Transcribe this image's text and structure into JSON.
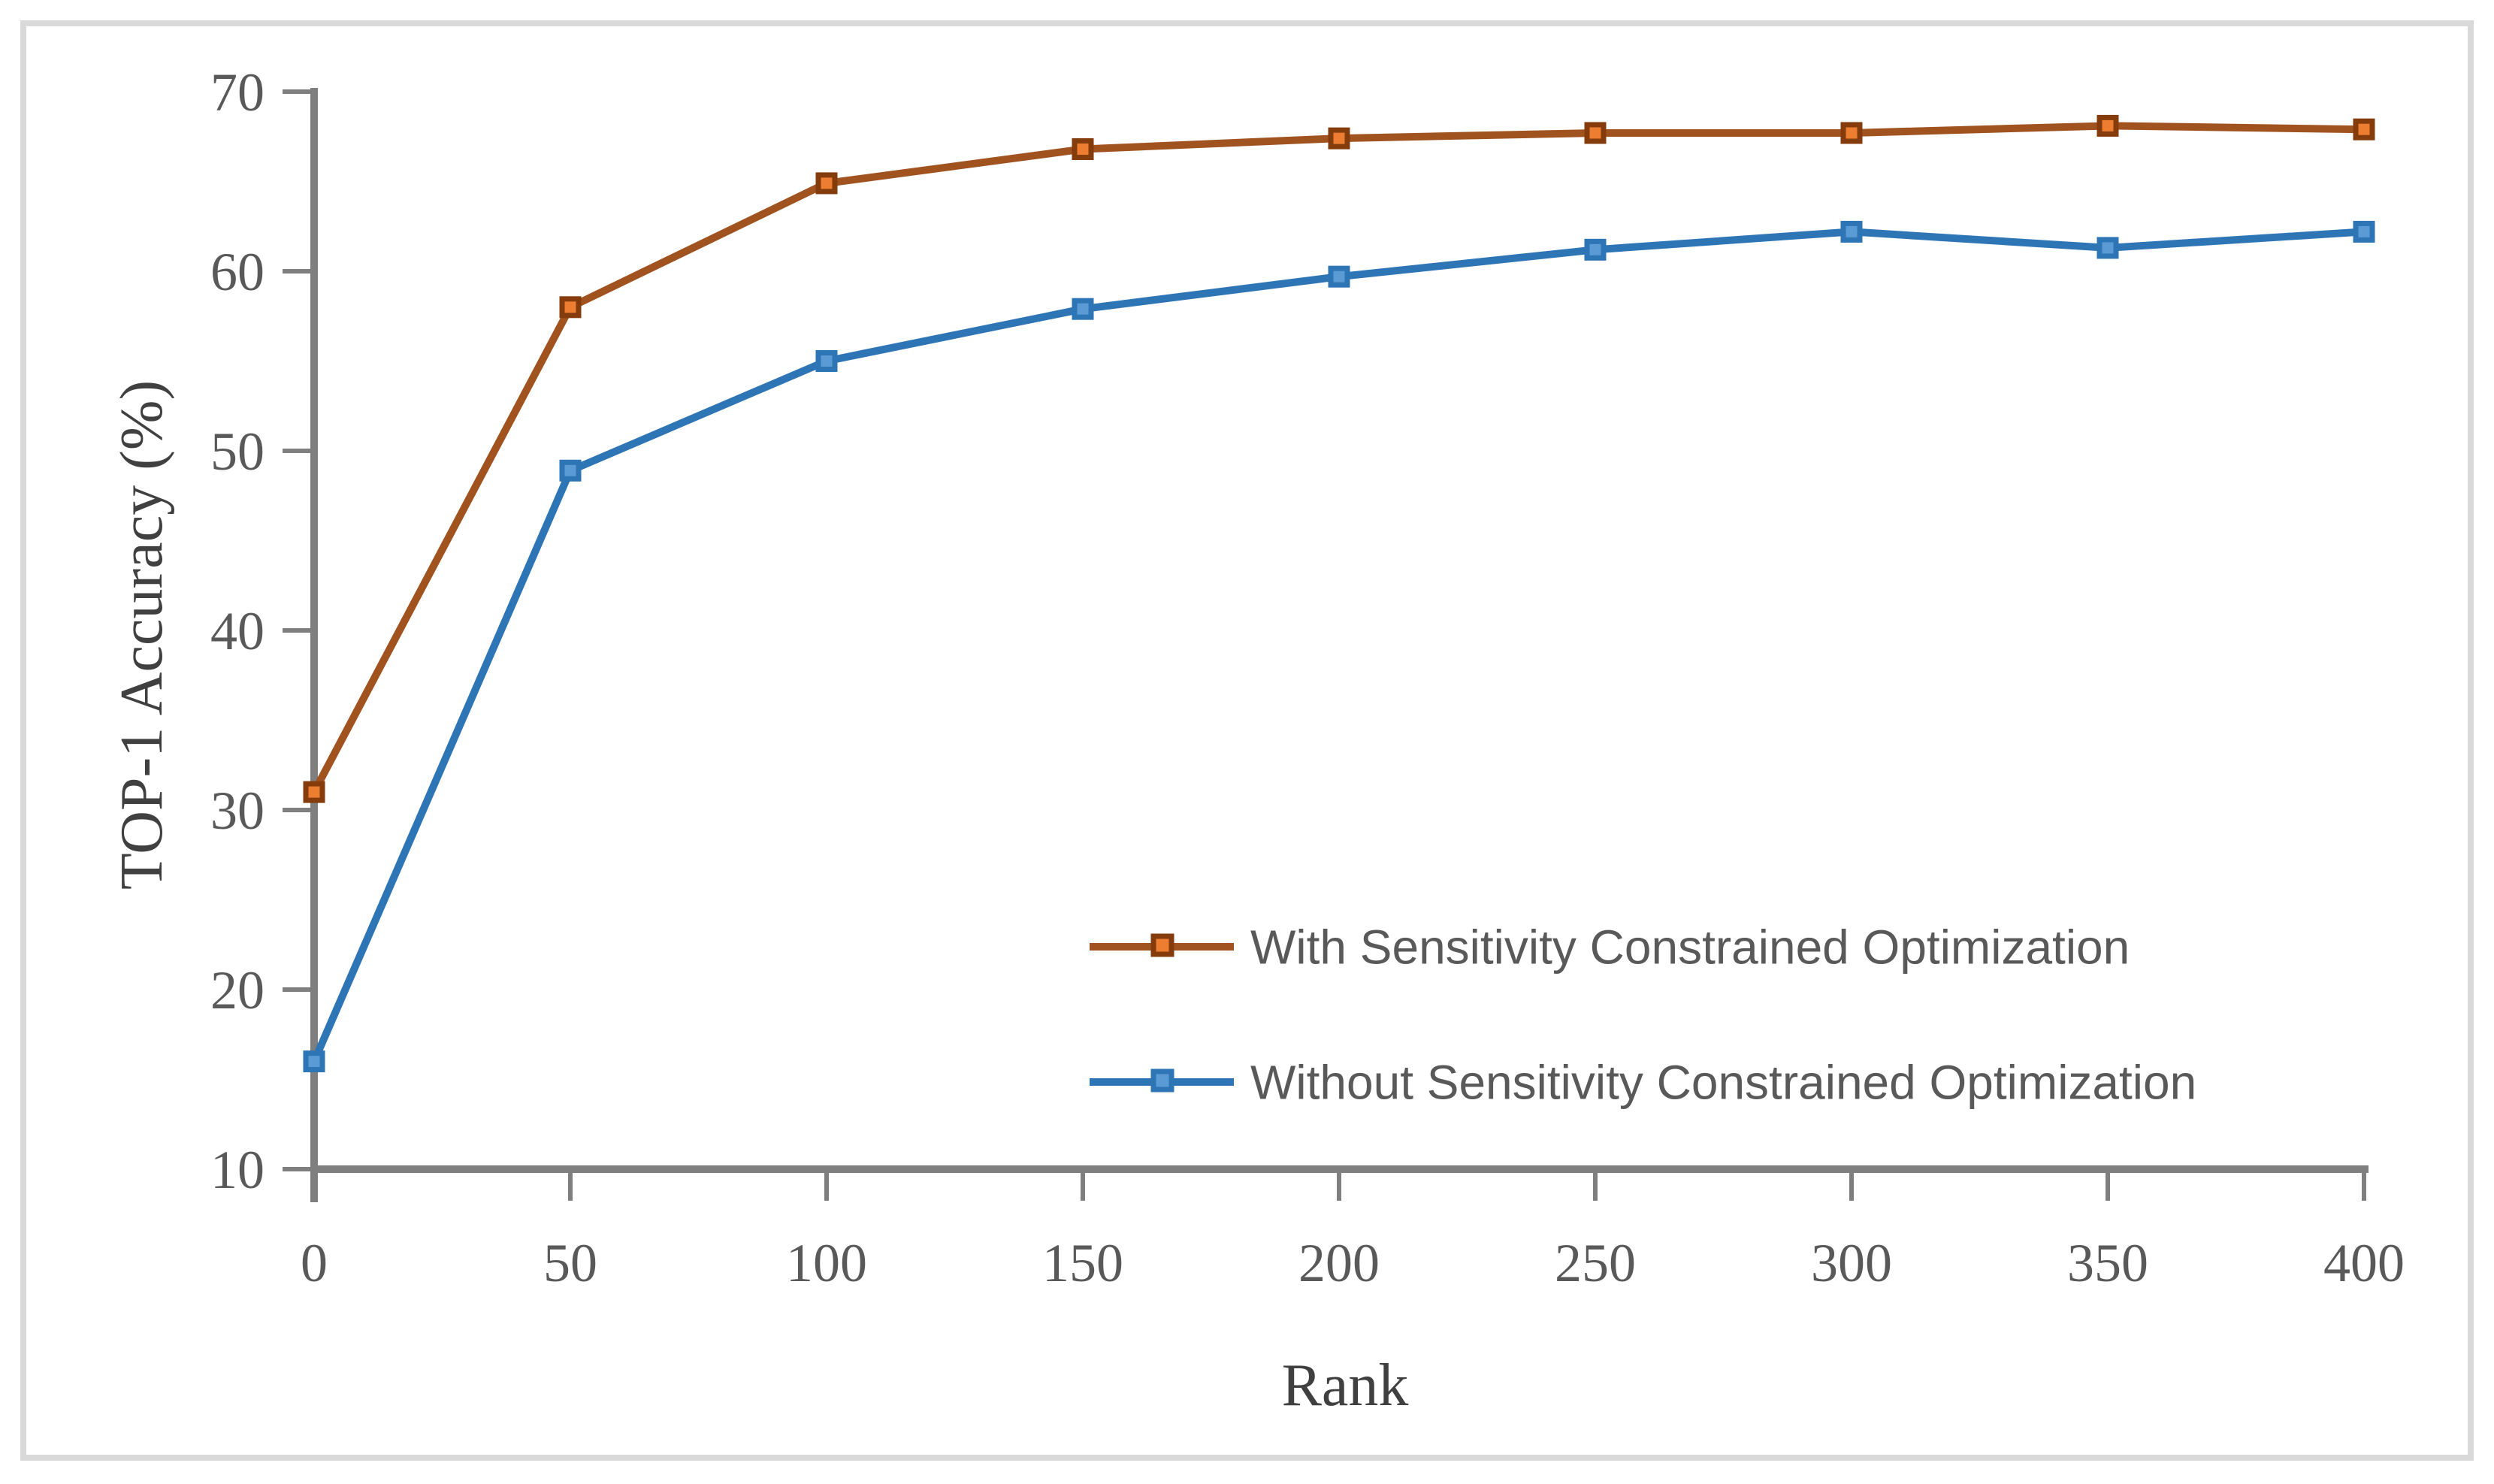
{
  "frame": {
    "border_color": "#D9D9D9",
    "background_color": "#FFFFFF"
  },
  "chart_data": {
    "type": "line",
    "title": "",
    "xlabel": "Rank",
    "ylabel": "TOP-1 Accuracy (%)",
    "x": [
      0,
      50,
      100,
      150,
      200,
      250,
      300,
      350,
      400
    ],
    "xticks": [
      0,
      50,
      100,
      150,
      200,
      250,
      300,
      350,
      400
    ],
    "yticks": [
      10,
      20,
      30,
      40,
      50,
      60,
      70
    ],
    "xlim": [
      0,
      400
    ],
    "ylim": [
      10,
      70
    ],
    "grid": false,
    "legend_position": "inside-bottom-right",
    "axis_color": "#7F7F7F",
    "tick_label_color": "#595959",
    "legend_text_color": "#595959",
    "series": [
      {
        "name": "With Sensitivity Constrained Optimization",
        "values": [
          31,
          58,
          64.9,
          66.8,
          67.4,
          67.7,
          67.7,
          68.1,
          67.9
        ],
        "line_color": "#A0521F",
        "marker": "square",
        "marker_fill": "#ED7D31",
        "marker_stroke": "#843C0C"
      },
      {
        "name": "Without Sensitivity Constrained Optimization",
        "values": [
          16,
          48.9,
          55.0,
          57.9,
          59.7,
          61.2,
          62.2,
          61.3,
          62.2
        ],
        "line_color": "#2E75B6",
        "marker": "square",
        "marker_fill": "#5B9BD5",
        "marker_stroke": "#2E75B6"
      }
    ]
  }
}
